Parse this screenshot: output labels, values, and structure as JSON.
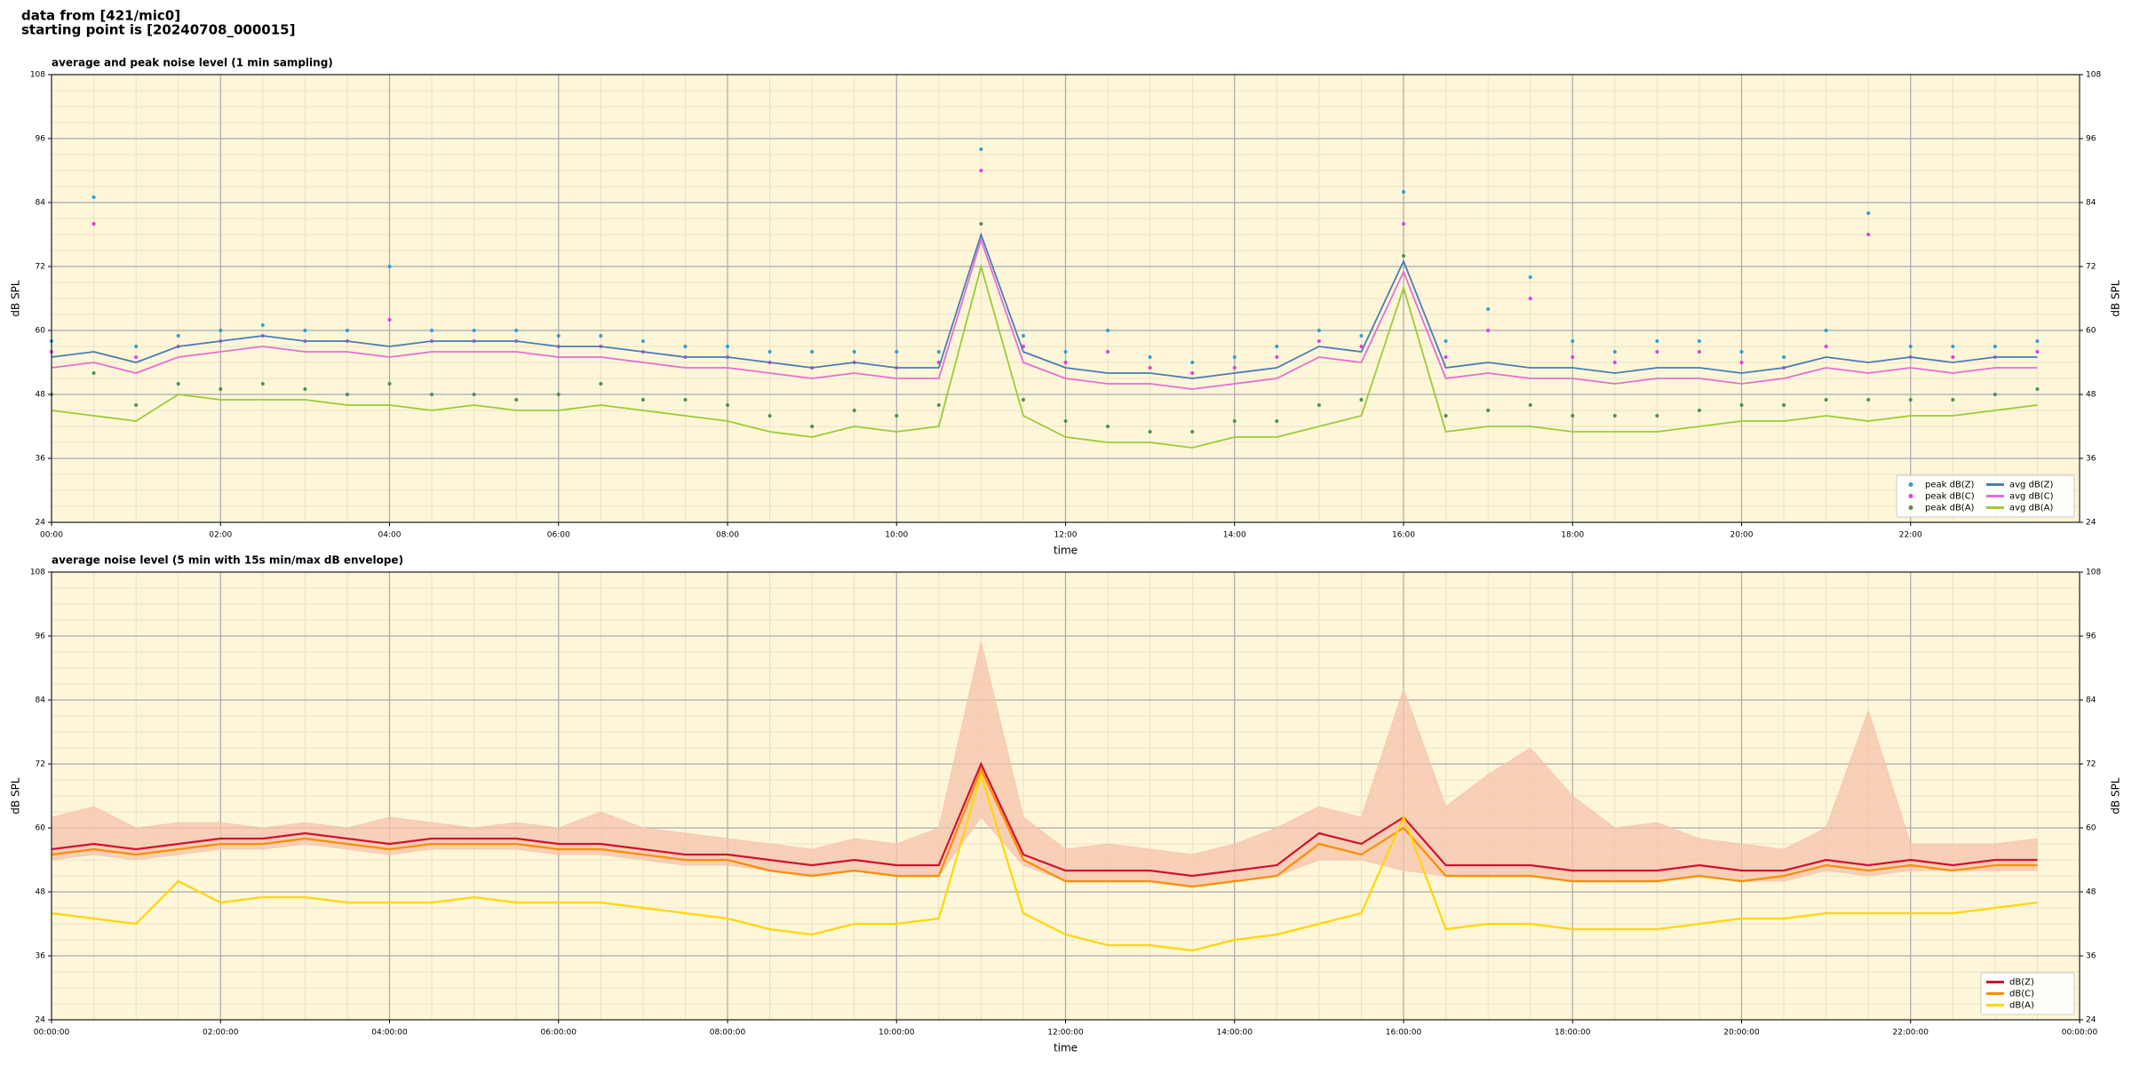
{
  "header": [
    "data from [421/mic0]",
    "starting point is [20240708_000015]"
  ],
  "chart_data": [
    {
      "type": "line",
      "title": "average and peak noise level (1 min sampling)",
      "xlabel": "time",
      "ylabel": "dB SPL",
      "xlim": [
        0,
        24
      ],
      "ylim": [
        24,
        108
      ],
      "yticks": [
        24,
        36,
        48,
        60,
        72,
        84,
        96,
        108
      ],
      "xticks": [
        {
          "value": 0,
          "label": "00:00"
        },
        {
          "value": 2,
          "label": "02:00"
        },
        {
          "value": 4,
          "label": "04:00"
        },
        {
          "value": 6,
          "label": "06:00"
        },
        {
          "value": 8,
          "label": "08:00"
        },
        {
          "value": 10,
          "label": "10:00"
        },
        {
          "value": 12,
          "label": "12:00"
        },
        {
          "value": 14,
          "label": "14:00"
        },
        {
          "value": 16,
          "label": "16:00"
        },
        {
          "value": 18,
          "label": "18:00"
        },
        {
          "value": 20,
          "label": "20:00"
        },
        {
          "value": 22,
          "label": "22:00"
        }
      ],
      "grid": true,
      "background": "#fdf6d9",
      "legend": "lower right",
      "legend_columns": 2,
      "x": [
        "00:00",
        "00:30",
        "01:00",
        "01:30",
        "02:00",
        "02:30",
        "03:00",
        "03:30",
        "04:00",
        "04:30",
        "05:00",
        "05:30",
        "06:00",
        "06:30",
        "07:00",
        "07:30",
        "08:00",
        "08:30",
        "09:00",
        "09:30",
        "10:00",
        "10:30",
        "11:00",
        "11:30",
        "12:00",
        "12:30",
        "13:00",
        "13:30",
        "14:00",
        "14:30",
        "15:00",
        "15:30",
        "16:00",
        "16:30",
        "17:00",
        "17:30",
        "18:00",
        "18:30",
        "19:00",
        "19:30",
        "20:00",
        "20:30",
        "21:00",
        "21:30",
        "22:00",
        "22:30",
        "23:00",
        "23:30"
      ],
      "series": [
        {
          "name": "peak dB(Z)",
          "style": "points",
          "color": "#2b9fd9",
          "values": [
            58,
            85,
            57,
            59,
            60,
            61,
            60,
            60,
            72,
            60,
            60,
            60,
            59,
            59,
            58,
            57,
            57,
            56,
            56,
            56,
            56,
            56,
            94,
            59,
            56,
            60,
            55,
            54,
            55,
            57,
            60,
            59,
            86,
            58,
            64,
            70,
            58,
            56,
            58,
            58,
            56,
            55,
            60,
            82,
            57,
            57,
            57,
            58
          ]
        },
        {
          "name": "peak dB(C)",
          "style": "points",
          "color": "#e03fe0",
          "values": [
            56,
            80,
            55,
            57,
            58,
            59,
            58,
            58,
            62,
            58,
            58,
            58,
            57,
            57,
            56,
            55,
            55,
            54,
            53,
            54,
            53,
            54,
            90,
            57,
            54,
            56,
            53,
            52,
            53,
            55,
            58,
            57,
            80,
            55,
            60,
            66,
            55,
            54,
            56,
            56,
            54,
            53,
            57,
            78,
            55,
            55,
            55,
            56
          ]
        },
        {
          "name": "peak dB(A)",
          "style": "points",
          "color": "#4f8f55",
          "values": [
            48,
            52,
            46,
            50,
            49,
            50,
            49,
            48,
            50,
            48,
            48,
            47,
            48,
            50,
            47,
            47,
            46,
            44,
            42,
            45,
            44,
            46,
            80,
            47,
            43,
            42,
            41,
            41,
            43,
            43,
            46,
            47,
            74,
            44,
            45,
            46,
            44,
            44,
            44,
            45,
            46,
            46,
            47,
            47,
            47,
            47,
            48,
            49
          ]
        },
        {
          "name": "avg dB(Z)",
          "style": "line",
          "color": "#4a7db3",
          "values": [
            55,
            56,
            54,
            57,
            58,
            59,
            58,
            58,
            57,
            58,
            58,
            58,
            57,
            57,
            56,
            55,
            55,
            54,
            53,
            54,
            53,
            53,
            78,
            56,
            53,
            52,
            52,
            51,
            52,
            53,
            57,
            56,
            73,
            53,
            54,
            53,
            53,
            52,
            53,
            53,
            52,
            53,
            55,
            54,
            55,
            54,
            55,
            55
          ]
        },
        {
          "name": "avg dB(C)",
          "style": "line",
          "color": "#e46fd3",
          "values": [
            53,
            54,
            52,
            55,
            56,
            57,
            56,
            56,
            55,
            56,
            56,
            56,
            55,
            55,
            54,
            53,
            53,
            52,
            51,
            52,
            51,
            51,
            77,
            54,
            51,
            50,
            50,
            49,
            50,
            51,
            55,
            54,
            71,
            51,
            52,
            51,
            51,
            50,
            51,
            51,
            50,
            51,
            53,
            52,
            53,
            52,
            53,
            53
          ]
        },
        {
          "name": "avg dB(A)",
          "style": "line",
          "color": "#9acd32",
          "values": [
            45,
            44,
            43,
            48,
            47,
            47,
            47,
            46,
            46,
            45,
            46,
            45,
            45,
            46,
            45,
            44,
            43,
            41,
            40,
            42,
            41,
            42,
            72,
            44,
            40,
            39,
            39,
            38,
            40,
            40,
            42,
            44,
            68,
            41,
            42,
            42,
            41,
            41,
            41,
            42,
            43,
            43,
            44,
            43,
            44,
            44,
            45,
            46
          ]
        }
      ]
    },
    {
      "type": "line",
      "title": "average noise level (5 min with 15s min/max dB envelope)",
      "xlabel": "time",
      "ylabel": "dB SPL",
      "xlim": [
        0,
        24
      ],
      "ylim": [
        24,
        108
      ],
      "yticks": [
        24,
        36,
        48,
        60,
        72,
        84,
        96,
        108
      ],
      "xticks": [
        {
          "value": 0,
          "label": "00:00:00"
        },
        {
          "value": 2,
          "label": "02:00:00"
        },
        {
          "value": 4,
          "label": "04:00:00"
        },
        {
          "value": 6,
          "label": "06:00:00"
        },
        {
          "value": 8,
          "label": "08:00:00"
        },
        {
          "value": 10,
          "label": "10:00:00"
        },
        {
          "value": 12,
          "label": "12:00:00"
        },
        {
          "value": 14,
          "label": "14:00:00"
        },
        {
          "value": 16,
          "label": "16:00:00"
        },
        {
          "value": 18,
          "label": "18:00:00"
        },
        {
          "value": 20,
          "label": "20:00:00"
        },
        {
          "value": 22,
          "label": "22:00:00"
        },
        {
          "value": 24,
          "label": "00:00:00"
        }
      ],
      "grid": true,
      "background": "#fdf6d9",
      "legend": "lower right",
      "legend_columns": 1,
      "x": [
        "00:00:00",
        "00:30:00",
        "01:00:00",
        "01:30:00",
        "02:00:00",
        "02:30:00",
        "03:00:00",
        "03:30:00",
        "04:00:00",
        "04:30:00",
        "05:00:00",
        "05:30:00",
        "06:00:00",
        "06:30:00",
        "07:00:00",
        "07:30:00",
        "08:00:00",
        "08:30:00",
        "09:00:00",
        "09:30:00",
        "10:00:00",
        "10:30:00",
        "11:00:00",
        "11:30:00",
        "12:00:00",
        "12:30:00",
        "13:00:00",
        "13:30:00",
        "14:00:00",
        "14:30:00",
        "15:00:00",
        "15:30:00",
        "16:00:00",
        "16:30:00",
        "17:00:00",
        "17:30:00",
        "18:00:00",
        "18:30:00",
        "19:00:00",
        "19:30:00",
        "20:00:00",
        "20:30:00",
        "21:00:00",
        "21:30:00",
        "22:00:00",
        "22:30:00",
        "23:00:00",
        "23:30:00"
      ],
      "envelope": {
        "color": "#f6c3ab",
        "upper": [
          62,
          64,
          60,
          61,
          61,
          60,
          61,
          60,
          62,
          61,
          60,
          61,
          60,
          63,
          60,
          59,
          58,
          57,
          56,
          58,
          57,
          60,
          95,
          62,
          56,
          57,
          56,
          55,
          57,
          60,
          64,
          62,
          86,
          64,
          70,
          75,
          66,
          60,
          61,
          58,
          57,
          56,
          60,
          82,
          57,
          57,
          57,
          58
        ],
        "lower": [
          54,
          55,
          54,
          55,
          56,
          56,
          57,
          56,
          55,
          56,
          56,
          56,
          55,
          55,
          54,
          53,
          53,
          52,
          51,
          52,
          51,
          51,
          62,
          53,
          50,
          50,
          50,
          49,
          50,
          51,
          54,
          54,
          52,
          51,
          51,
          51,
          50,
          50,
          50,
          51,
          50,
          50,
          52,
          51,
          52,
          52,
          52,
          52
        ]
      },
      "series": [
        {
          "name": "dB(Z)",
          "style": "line",
          "color": "#d0122e",
          "values": [
            56,
            57,
            56,
            57,
            58,
            58,
            59,
            58,
            57,
            58,
            58,
            58,
            57,
            57,
            56,
            55,
            55,
            54,
            53,
            54,
            53,
            53,
            72,
            55,
            52,
            52,
            52,
            51,
            52,
            53,
            59,
            57,
            62,
            53,
            53,
            53,
            52,
            52,
            52,
            53,
            52,
            52,
            54,
            53,
            54,
            53,
            54,
            54
          ]
        },
        {
          "name": "dB(C)",
          "style": "line",
          "color": "#ff8c00",
          "values": [
            55,
            56,
            55,
            56,
            57,
            57,
            58,
            57,
            56,
            57,
            57,
            57,
            56,
            56,
            55,
            54,
            54,
            52,
            51,
            52,
            51,
            51,
            71,
            54,
            50,
            50,
            50,
            49,
            50,
            51,
            57,
            55,
            60,
            51,
            51,
            51,
            50,
            50,
            50,
            51,
            50,
            51,
            53,
            52,
            53,
            52,
            53,
            53
          ]
        },
        {
          "name": "dB(A)",
          "style": "line",
          "color": "#ffd700",
          "values": [
            44,
            43,
            42,
            50,
            46,
            47,
            47,
            46,
            46,
            46,
            47,
            46,
            46,
            46,
            45,
            44,
            43,
            41,
            40,
            42,
            42,
            43,
            70,
            44,
            40,
            38,
            38,
            37,
            39,
            40,
            42,
            44,
            62,
            41,
            42,
            42,
            41,
            41,
            41,
            42,
            43,
            43,
            44,
            44,
            44,
            44,
            45,
            46
          ]
        }
      ]
    }
  ]
}
